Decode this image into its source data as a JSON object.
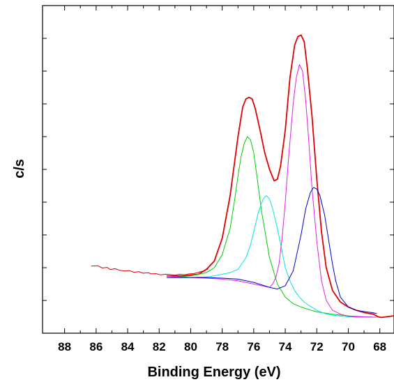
{
  "chart_data": {
    "type": "line",
    "title": "",
    "xlabel": "Binding Energy (eV)",
    "ylabel": "c/s",
    "xlim": [
      89.4,
      67.1
    ],
    "x_reversed": true,
    "ylim": [
      0,
      1
    ],
    "y_tick_labels_shown": false,
    "grid": false,
    "legend": "none",
    "x_ticks": [
      88,
      86,
      84,
      82,
      80,
      78,
      76,
      74,
      72,
      70,
      68
    ],
    "x_tick_labels": [
      "88",
      "86",
      "84",
      "82",
      "80",
      "78",
      "76",
      "74",
      "72",
      "70",
      "68"
    ],
    "series": [
      {
        "color": "#e00000",
        "width": 1.0,
        "x": [
          86.3,
          85.9,
          85.6,
          85.3,
          85.1,
          84.8,
          84.5,
          84.2,
          83.9,
          83.6,
          83.3,
          83.0,
          82.7,
          82.5,
          82.2,
          81.9,
          81.6,
          81.3,
          81.0,
          80.7,
          80.4,
          80.1,
          79.8,
          79.5,
          79.2,
          78.9
        ],
        "y": [
          0.205,
          0.206,
          0.199,
          0.201,
          0.194,
          0.197,
          0.192,
          0.19,
          0.191,
          0.186,
          0.188,
          0.183,
          0.185,
          0.181,
          0.182,
          0.178,
          0.18,
          0.179,
          0.177,
          0.18,
          0.178,
          0.181,
          0.182,
          0.186,
          0.19,
          0.196
        ]
      },
      {
        "color": "#e00000",
        "width": 1.8,
        "x": [
          81.5,
          80.5,
          79.5,
          79.0,
          78.5,
          78.0,
          77.5,
          77.0,
          76.7,
          76.5,
          76.3,
          76.1,
          75.9,
          75.6,
          75.3,
          75.0,
          74.7,
          74.5,
          74.3,
          74.0,
          73.7,
          73.4,
          73.2,
          73.0,
          72.8,
          72.6,
          72.3,
          72.0,
          71.7,
          71.4,
          71.0,
          70.5,
          70.0,
          69.5,
          68.9,
          68.4,
          68.1,
          67.9,
          67.6,
          67.3,
          67.1
        ],
        "y": [
          0.175,
          0.175,
          0.18,
          0.195,
          0.22,
          0.29,
          0.42,
          0.6,
          0.69,
          0.715,
          0.72,
          0.715,
          0.685,
          0.62,
          0.55,
          0.5,
          0.465,
          0.47,
          0.51,
          0.62,
          0.78,
          0.88,
          0.905,
          0.91,
          0.89,
          0.81,
          0.66,
          0.47,
          0.31,
          0.2,
          0.13,
          0.095,
          0.08,
          0.07,
          0.062,
          0.058,
          0.05,
          0.048,
          0.05,
          0.052,
          0.053
        ]
      },
      {
        "color": "#00cc00",
        "width": 1.0,
        "x": [
          81.5,
          80.0,
          79.0,
          78.5,
          78.0,
          77.5,
          77.2,
          77.0,
          76.8,
          76.6,
          76.4,
          76.2,
          76.0,
          75.8,
          75.5,
          75.0,
          74.5,
          74.0,
          73.5,
          73.0,
          72.5,
          72.0,
          71.0,
          70.0,
          69.0,
          68.2
        ],
        "y": [
          0.17,
          0.175,
          0.185,
          0.2,
          0.24,
          0.32,
          0.41,
          0.48,
          0.54,
          0.58,
          0.6,
          0.59,
          0.55,
          0.48,
          0.37,
          0.23,
          0.15,
          0.11,
          0.09,
          0.08,
          0.072,
          0.065,
          0.058,
          0.053,
          0.05,
          0.049
        ]
      },
      {
        "color": "#00e5e5",
        "width": 1.0,
        "x": [
          81.5,
          80.0,
          79.0,
          78.5,
          78.0,
          77.5,
          77.0,
          76.5,
          76.2,
          76.0,
          75.7,
          75.4,
          75.2,
          75.0,
          74.8,
          74.5,
          74.2,
          74.0,
          73.7,
          73.4,
          73.1,
          72.8,
          72.5,
          72.0,
          71.5,
          71.0,
          70.0,
          69.0,
          68.2
        ],
        "y": [
          0.17,
          0.17,
          0.172,
          0.175,
          0.18,
          0.185,
          0.195,
          0.23,
          0.27,
          0.31,
          0.37,
          0.41,
          0.42,
          0.41,
          0.38,
          0.32,
          0.25,
          0.2,
          0.16,
          0.13,
          0.11,
          0.095,
          0.085,
          0.07,
          0.06,
          0.055,
          0.05,
          0.049,
          0.049
        ]
      },
      {
        "color": "#e020e0",
        "width": 1.0,
        "x": [
          81.5,
          80.0,
          79.0,
          78.0,
          77.0,
          76.0,
          75.5,
          75.0,
          74.8,
          74.6,
          74.4,
          74.2,
          74.0,
          73.8,
          73.5,
          73.3,
          73.1,
          72.9,
          72.7,
          72.5,
          72.3,
          72.0,
          71.7,
          71.4,
          71.0,
          70.5,
          70.0,
          69.5,
          68.9,
          68.4,
          68.2
        ],
        "y": [
          0.175,
          0.17,
          0.168,
          0.165,
          0.16,
          0.15,
          0.145,
          0.14,
          0.15,
          0.17,
          0.21,
          0.29,
          0.4,
          0.53,
          0.7,
          0.78,
          0.82,
          0.8,
          0.71,
          0.58,
          0.44,
          0.28,
          0.16,
          0.1,
          0.07,
          0.058,
          0.052,
          0.05,
          0.05,
          0.049,
          0.049
        ]
      },
      {
        "color": "#0000cc",
        "width": 1.0,
        "x": [
          81.5,
          80.0,
          79.0,
          78.0,
          77.0,
          76.0,
          75.0,
          74.5,
          74.0,
          73.5,
          73.0,
          72.7,
          72.4,
          72.2,
          72.0,
          71.8,
          71.5,
          71.2,
          71.0,
          70.8,
          70.5,
          70.0,
          69.5,
          69.0,
          68.5,
          68.2
        ],
        "y": [
          0.17,
          0.17,
          0.17,
          0.168,
          0.165,
          0.155,
          0.14,
          0.135,
          0.145,
          0.19,
          0.3,
          0.38,
          0.43,
          0.445,
          0.44,
          0.42,
          0.36,
          0.27,
          0.21,
          0.16,
          0.11,
          0.08,
          0.07,
          0.066,
          0.063,
          0.06
        ]
      }
    ]
  }
}
